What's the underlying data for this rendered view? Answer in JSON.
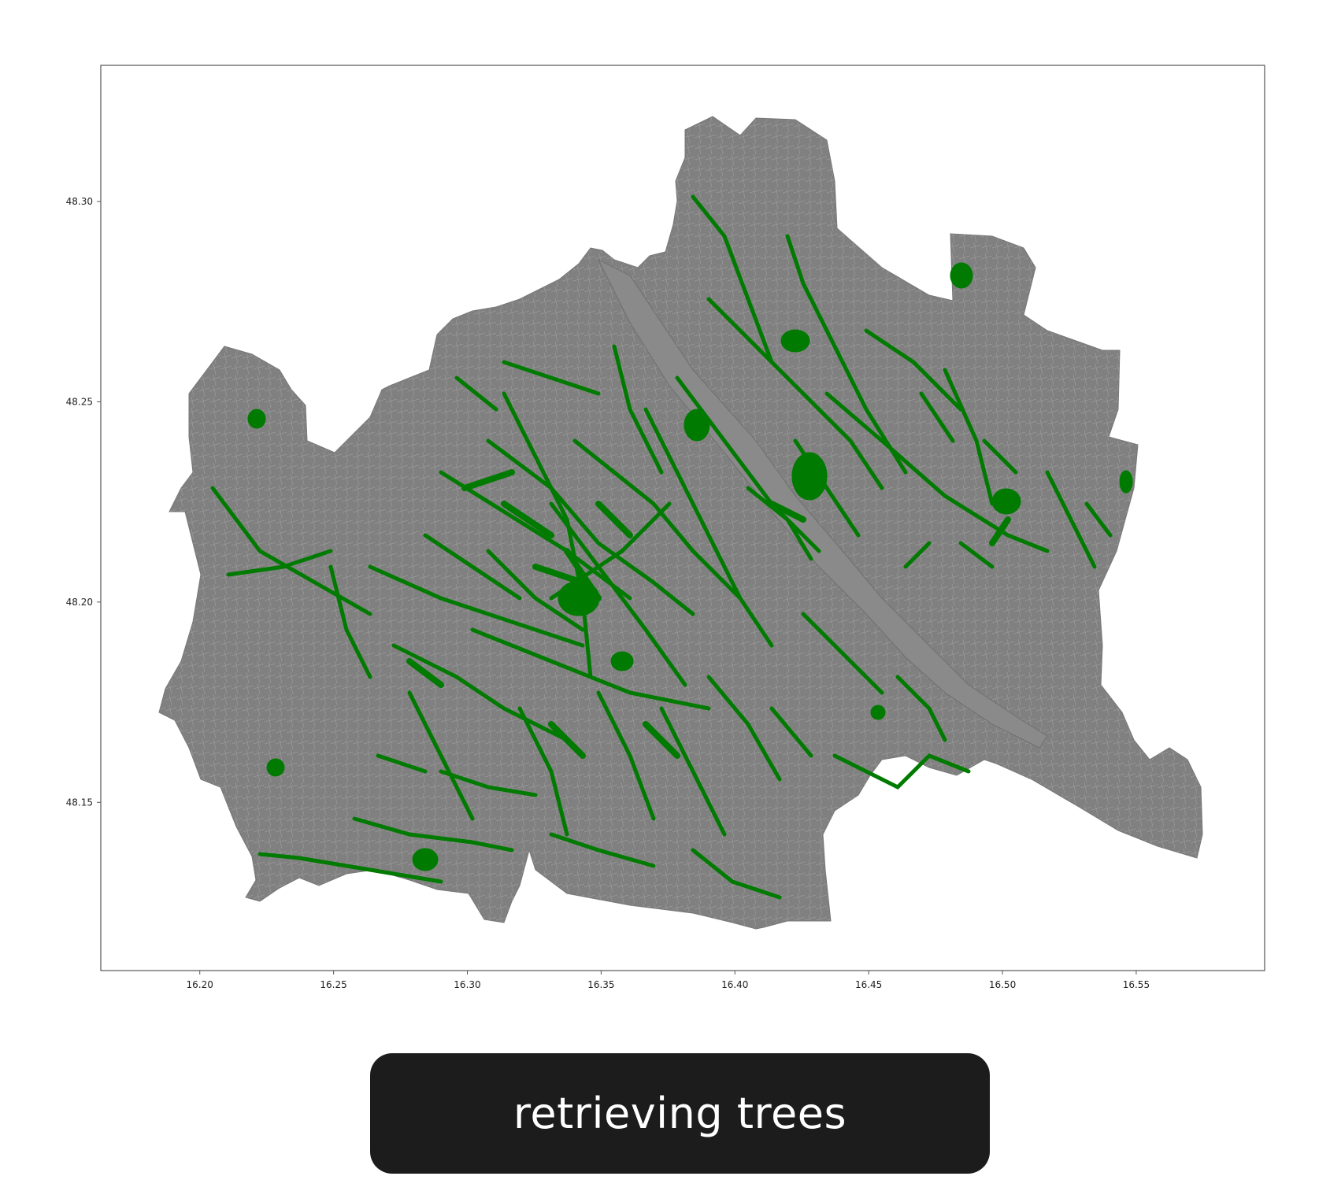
{
  "map": {
    "x_ticks": [
      "16.20",
      "16.25",
      "16.30",
      "16.35",
      "16.40",
      "16.45",
      "16.50",
      "16.55"
    ],
    "y_ticks": [
      "48.30",
      "48.25",
      "48.20",
      "48.15"
    ],
    "xlim": [
      16.163,
      16.598
    ],
    "ylim": [
      48.108,
      48.334
    ],
    "colors": {
      "land": "#808080",
      "trees": "#007a00",
      "streets": "#c8c8c8",
      "frame": "#555555"
    },
    "layers": [
      "district-polygons",
      "tree-points"
    ]
  },
  "status": {
    "label": "retrieving trees"
  }
}
